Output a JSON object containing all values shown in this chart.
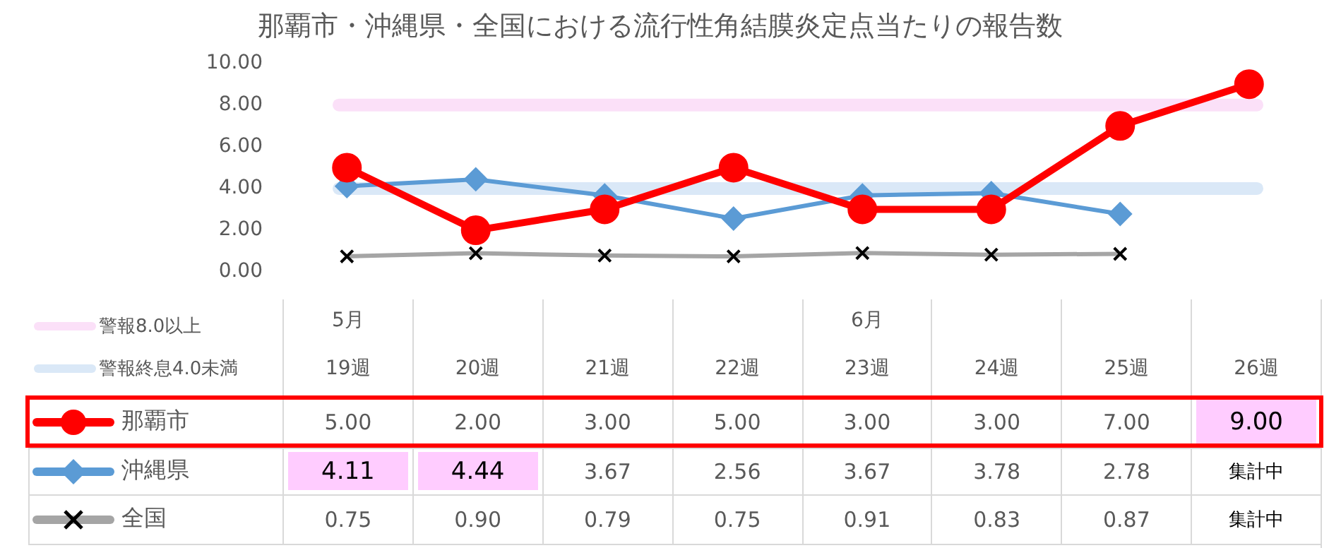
{
  "chart_data": {
    "type": "line",
    "title": "那覇市・沖縄県・全国における流行性角結膜炎定点当たりの報告数",
    "categories": [
      "19週",
      "20週",
      "21週",
      "22週",
      "23週",
      "24週",
      "25週",
      "26週"
    ],
    "series": [
      {
        "name": "那覇市",
        "color": "#ff0000",
        "marker": "circle",
        "values": [
          5,
          2,
          3,
          5,
          3,
          3,
          7,
          9
        ],
        "value_labels": [
          "5.00",
          "2.00",
          "3.00",
          "5.00",
          "3.00",
          "3.00",
          "7.00",
          "9.00"
        ]
      },
      {
        "name": "沖縄県",
        "color": "#5b9bd5",
        "marker": "diamond",
        "values": [
          4.11,
          4.44,
          3.67,
          2.56,
          3.67,
          3.78,
          2.78,
          null
        ],
        "value_labels": [
          "4.11",
          "4.44",
          "3.67",
          "2.56",
          "3.67",
          "3.78",
          "2.78",
          "集計中"
        ]
      },
      {
        "name": "全国",
        "color": "#a5a5a5",
        "marker": "cross",
        "values": [
          0.75,
          0.9,
          0.79,
          0.75,
          0.91,
          0.83,
          0.87,
          null
        ],
        "value_labels": [
          "0.75",
          "0.90",
          "0.79",
          "0.75",
          "0.91",
          "0.83",
          "0.87",
          "集計中"
        ]
      }
    ],
    "ylim": [
      0,
      10
    ],
    "yticks": [
      {
        "value": 0,
        "label": "0.00"
      },
      {
        "value": 2,
        "label": "2.00"
      },
      {
        "value": 4,
        "label": "4.00"
      },
      {
        "value": 6,
        "label": "6.00"
      },
      {
        "value": 8,
        "label": "8.00"
      },
      {
        "value": 10,
        "label": "10.00"
      }
    ],
    "ref_lines": [
      {
        "axis": "y",
        "value": 8,
        "label": "警報8.0以上",
        "color": "#fbe0f8"
      },
      {
        "axis": "y",
        "value": 4,
        "label": "警報終息4.0未満",
        "color": "#dae8f7"
      }
    ],
    "annotations": [
      "5月",
      "6月"
    ],
    "grid": false,
    "legend": "bottom left"
  }
}
